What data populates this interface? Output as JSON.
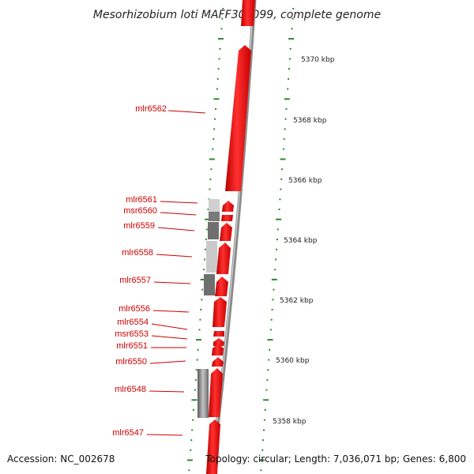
{
  "title": "Mesorhizobium loti MAFF303099, complete genome",
  "footer": {
    "accession": "Accession: NC_002678",
    "topology": "Topology: circular; Length: 7,036,071 bp; Genes: 6,800"
  },
  "colors": {
    "gene": "#ee0000",
    "gene_highlight": "#ff6a6a",
    "backbone": "#8a8a8a",
    "tick": "#2a8a2a",
    "label": "#cc0000",
    "block_light": "#cfcfcf",
    "block_dark": "#6f6f6f"
  },
  "scale_ticks": [
    {
      "label": "5370 kbp",
      "pos_kbp": 5370
    },
    {
      "label": "5368 kbp",
      "pos_kbp": 5368
    },
    {
      "label": "5366 kbp",
      "pos_kbp": 5366
    },
    {
      "label": "5364 kbp",
      "pos_kbp": 5364
    },
    {
      "label": "5362 kbp",
      "pos_kbp": 5362
    },
    {
      "label": "5360 kbp",
      "pos_kbp": 5360
    },
    {
      "label": "5358 kbp",
      "pos_kbp": 5358
    }
  ],
  "genes": [
    {
      "label": "mlr6562"
    },
    {
      "label": "mlr6561"
    },
    {
      "label": "msr6560"
    },
    {
      "label": "mlr6559"
    },
    {
      "label": "mlr6558"
    },
    {
      "label": "mlr6557"
    },
    {
      "label": "mlr6556"
    },
    {
      "label": "mlr6554"
    },
    {
      "label": "msr6553"
    },
    {
      "label": "mlr6551"
    },
    {
      "label": "mlr6550"
    },
    {
      "label": "mlr6548"
    },
    {
      "label": "mlr6547"
    }
  ]
}
